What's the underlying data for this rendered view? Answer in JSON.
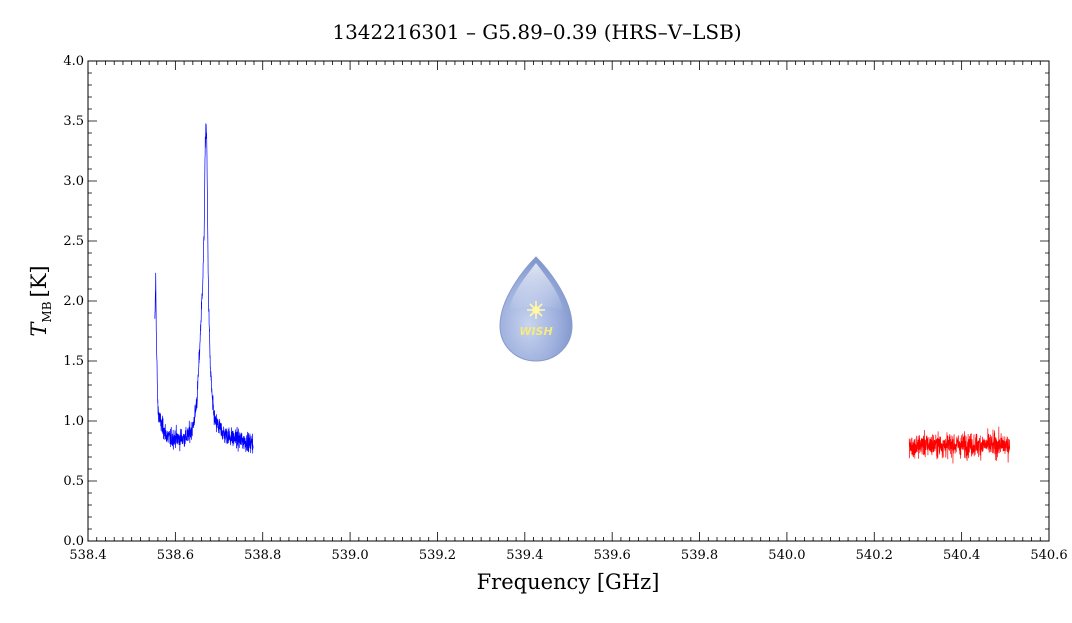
{
  "chart_data": {
    "type": "line",
    "title": "1342216301 – G5.89–0.39 (HRS–V–LSB)",
    "xlabel": "Frequency [GHz]",
    "ylabel": {
      "symbol": "T",
      "subscript": "MB",
      "unit": "[K]"
    },
    "xlim": [
      538.4,
      540.6
    ],
    "ylim": [
      0.0,
      4.0
    ],
    "x_ticks": [
      538.4,
      538.6,
      538.8,
      539.0,
      539.2,
      539.4,
      539.6,
      539.8,
      540.0,
      540.2,
      540.4,
      540.6
    ],
    "x_tick_labels": [
      "538.4",
      "538.6",
      "538.8",
      "539.0",
      "539.2",
      "539.4",
      "539.6",
      "539.8",
      "540.0",
      "540.2",
      "540.4",
      "540.6"
    ],
    "y_ticks": [
      0.0,
      0.5,
      1.0,
      1.5,
      2.0,
      2.5,
      3.0,
      3.5,
      4.0
    ],
    "y_tick_labels": [
      "0.0",
      "0.5",
      "1.0",
      "1.5",
      "2.0",
      "2.5",
      "3.0",
      "3.5",
      "4.0"
    ],
    "grid": false,
    "series": [
      {
        "color": "#0000ff",
        "x": [
          538.553,
          538.555,
          538.557,
          538.56,
          538.565,
          538.57,
          538.58,
          538.59,
          538.6,
          538.61,
          538.62,
          538.63,
          538.64,
          538.645,
          538.65,
          538.655,
          538.66,
          538.663,
          538.666,
          538.668,
          538.67,
          538.672,
          538.674,
          538.676,
          538.68,
          538.685,
          538.69,
          538.7,
          538.71,
          538.72,
          538.73,
          538.74,
          538.75,
          538.76,
          538.77,
          538.778
        ],
        "y": [
          1.8,
          2.2,
          1.6,
          1.1,
          1.0,
          0.95,
          0.88,
          0.85,
          0.86,
          0.85,
          0.86,
          0.88,
          0.95,
          1.05,
          1.2,
          1.55,
          1.95,
          2.2,
          2.6,
          3.2,
          3.5,
          3.3,
          2.6,
          2.0,
          1.45,
          1.15,
          1.0,
          0.95,
          0.9,
          0.88,
          0.86,
          0.85,
          0.84,
          0.83,
          0.82,
          0.82
        ],
        "noise_amplitude": 0.13
      },
      {
        "color": "#ff0000",
        "x": [
          540.28,
          540.3,
          540.35,
          540.4,
          540.45,
          540.5,
          540.51
        ],
        "y": [
          0.78,
          0.8,
          0.8,
          0.8,
          0.8,
          0.8,
          0.8
        ],
        "noise_amplitude": 0.16
      }
    ],
    "logo_text": "WISH"
  }
}
